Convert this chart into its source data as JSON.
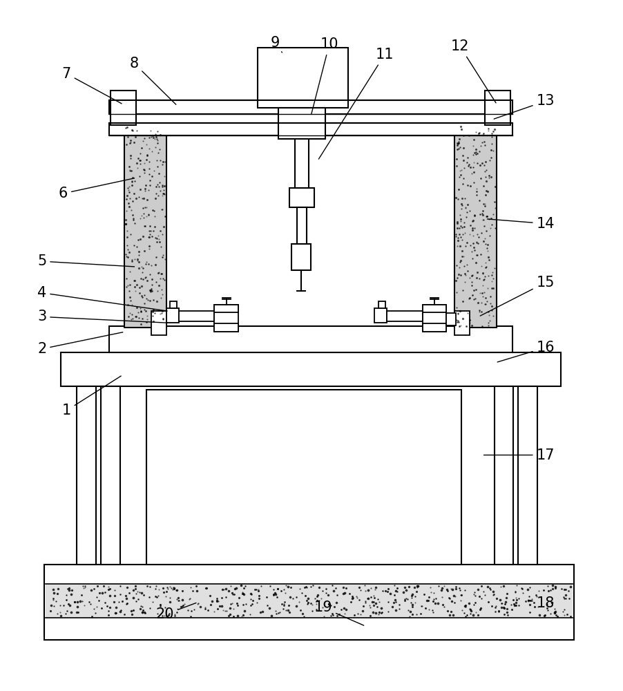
{
  "fig_width": 9.02,
  "fig_height": 10.0,
  "dpi": 100,
  "bg_color": "#ffffff"
}
